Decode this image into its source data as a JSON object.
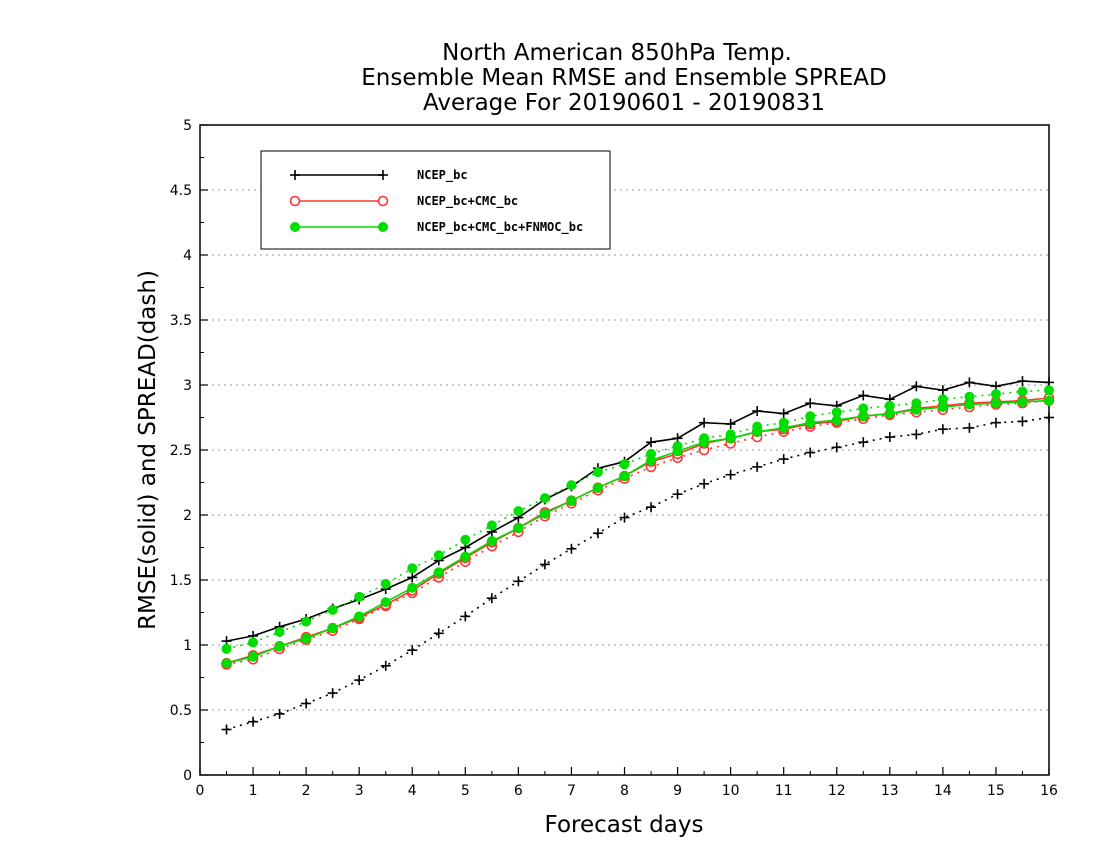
{
  "chart_data": {
    "type": "line",
    "title": [
      "North American 850hPa Temp.",
      "Ensemble Mean RMSE and Ensemble SPREAD",
      "Average For 20190601 - 20190831"
    ],
    "xlabel": "Forecast days",
    "ylabel": "RMSE(solid) and SPREAD(dash)",
    "xlim": [
      0,
      16
    ],
    "ylim": [
      0,
      5
    ],
    "xticks": [
      "0",
      "1",
      "2",
      "3",
      "4",
      "5",
      "6",
      "7",
      "8",
      "9",
      "10",
      "11",
      "12",
      "13",
      "14",
      "15",
      "16"
    ],
    "yticks": [
      "0",
      "0.5",
      "1",
      "1.5",
      "2",
      "2.5",
      "3",
      "3.5",
      "4",
      "4.5",
      "5"
    ],
    "grid": "horizontal-dotted",
    "legend_position": "top-left",
    "x": [
      0.5,
      1,
      1.5,
      2,
      2.5,
      3,
      3.5,
      4,
      4.5,
      5,
      5.5,
      6,
      6.5,
      7,
      7.5,
      8,
      8.5,
      9,
      9.5,
      10,
      10.5,
      11,
      11.5,
      12,
      12.5,
      13,
      13.5,
      14,
      14.5,
      15,
      15.5,
      16
    ],
    "series": [
      {
        "name": "NCEP_bc",
        "color": "#000000",
        "marker": "plus",
        "rmse": [
          1.03,
          1.07,
          1.14,
          1.2,
          1.28,
          1.35,
          1.43,
          1.52,
          1.65,
          1.75,
          1.87,
          1.98,
          2.12,
          2.22,
          2.36,
          2.41,
          2.56,
          2.59,
          2.71,
          2.7,
          2.8,
          2.78,
          2.86,
          2.84,
          2.92,
          2.89,
          2.99,
          2.96,
          3.02,
          2.99,
          3.03,
          3.02
        ],
        "spread": [
          0.35,
          0.41,
          0.47,
          0.55,
          0.63,
          0.73,
          0.84,
          0.96,
          1.09,
          1.22,
          1.36,
          1.49,
          1.62,
          1.74,
          1.86,
          1.98,
          2.06,
          2.16,
          2.24,
          2.31,
          2.37,
          2.43,
          2.48,
          2.52,
          2.56,
          2.6,
          2.62,
          2.66,
          2.67,
          2.71,
          2.72,
          2.75
        ]
      },
      {
        "name": "NCEP_bc+CMC_bc",
        "color": "#ff3333",
        "marker": "open-circle",
        "rmse": [
          0.86,
          0.92,
          0.99,
          1.06,
          1.13,
          1.21,
          1.31,
          1.42,
          1.55,
          1.67,
          1.79,
          1.9,
          2.02,
          2.11,
          2.21,
          2.3,
          2.41,
          2.47,
          2.55,
          2.59,
          2.64,
          2.66,
          2.7,
          2.72,
          2.76,
          2.78,
          2.82,
          2.84,
          2.86,
          2.87,
          2.88,
          2.9
        ],
        "spread": [
          0.85,
          0.89,
          0.97,
          1.04,
          1.11,
          1.2,
          1.3,
          1.4,
          1.52,
          1.64,
          1.76,
          1.87,
          1.99,
          2.09,
          2.19,
          2.28,
          2.37,
          2.44,
          2.5,
          2.55,
          2.6,
          2.64,
          2.68,
          2.71,
          2.74,
          2.77,
          2.79,
          2.81,
          2.83,
          2.85,
          2.86,
          2.88
        ]
      },
      {
        "name": "NCEP_bc+CMC_bc+FNMOC_bc",
        "color": "#00dd00",
        "marker": "filled-circle",
        "rmse": [
          0.86,
          0.91,
          0.99,
          1.05,
          1.13,
          1.22,
          1.33,
          1.44,
          1.56,
          1.68,
          1.8,
          1.9,
          2.01,
          2.11,
          2.21,
          2.3,
          2.42,
          2.49,
          2.56,
          2.59,
          2.64,
          2.67,
          2.71,
          2.73,
          2.76,
          2.78,
          2.81,
          2.83,
          2.85,
          2.86,
          2.87,
          2.88
        ],
        "spread": [
          0.97,
          1.02,
          1.1,
          1.18,
          1.27,
          1.37,
          1.47,
          1.59,
          1.69,
          1.81,
          1.92,
          2.03,
          2.13,
          2.23,
          2.33,
          2.39,
          2.47,
          2.53,
          2.59,
          2.62,
          2.68,
          2.71,
          2.76,
          2.79,
          2.82,
          2.84,
          2.86,
          2.89,
          2.91,
          2.93,
          2.95,
          2.96
        ]
      }
    ]
  }
}
